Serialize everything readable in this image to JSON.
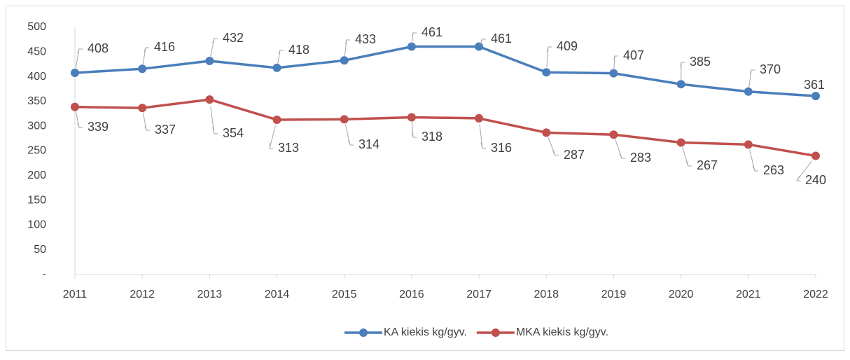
{
  "chart_data": {
    "type": "line",
    "categories": [
      "2011",
      "2012",
      "2013",
      "2014",
      "2015",
      "2016",
      "2017",
      "2018",
      "2019",
      "2020",
      "2021",
      "2022"
    ],
    "series": [
      {
        "name": "KA kiekis kg/gyv.",
        "color": "#4a7ebb",
        "values": [
          408,
          416,
          432,
          418,
          433,
          461,
          461,
          409,
          407,
          385,
          370,
          361
        ]
      },
      {
        "name": "MKA kiekis kg/gyv.",
        "color": "#c0504d",
        "values": [
          339,
          337,
          354,
          313,
          314,
          318,
          316,
          287,
          283,
          267,
          263,
          240
        ]
      }
    ],
    "ylim": [
      0,
      500
    ],
    "yticks": [
      {
        "value": 0,
        "label": "-"
      },
      50,
      100,
      150,
      200,
      250,
      300,
      350,
      400,
      450,
      500
    ],
    "grid": false,
    "legend": "bottom"
  }
}
